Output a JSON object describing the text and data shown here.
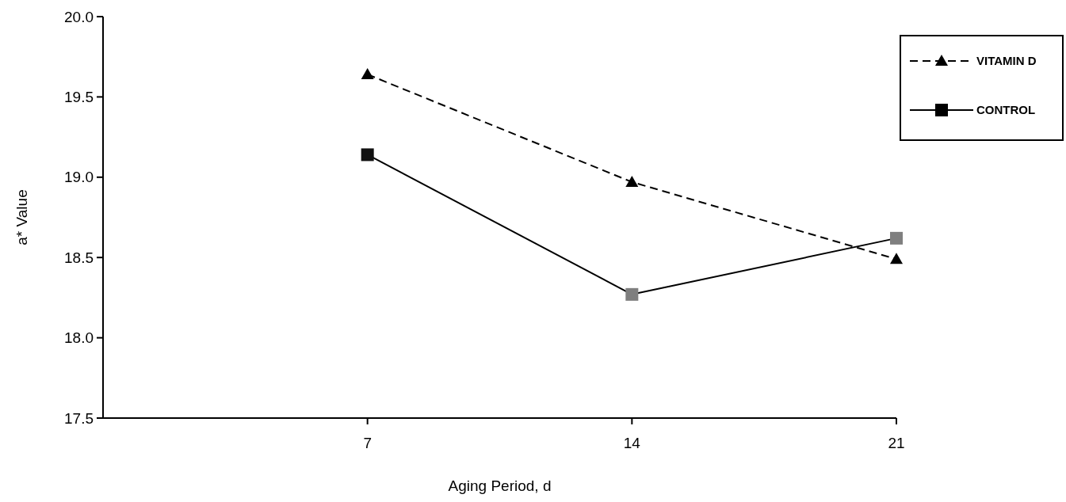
{
  "chart_data": {
    "type": "line",
    "xlabel": "Aging Period, d",
    "ylabel": "a* Value",
    "x": [
      7,
      14,
      21
    ],
    "xlim": [
      0,
      21
    ],
    "xticks": [
      7,
      14,
      21
    ],
    "ylim": [
      17.5,
      20.0
    ],
    "yticks": [
      {
        "value": 17.5,
        "label": "17.5"
      },
      {
        "value": 18.0,
        "label": "18.0"
      },
      {
        "value": 18.5,
        "label": "18.5"
      },
      {
        "value": 19.0,
        "label": "19.0"
      },
      {
        "value": 19.5,
        "label": "19.5"
      },
      {
        "value": 20.0,
        "label": "20.0"
      }
    ],
    "grid": false,
    "legend": "top right",
    "series": [
      {
        "name": "VITAMIN D",
        "color": "#000000",
        "values": [
          19.64,
          18.97,
          18.49
        ],
        "marker": "triangle",
        "line_style": "dashed"
      },
      {
        "name": "CONTROL",
        "color": "#000000",
        "colors": [
          "#111111",
          "#7f7f7f",
          "#7f7f7f"
        ],
        "values": [
          19.14,
          18.27,
          18.62
        ],
        "marker": "square",
        "line_style": "solid"
      }
    ]
  }
}
